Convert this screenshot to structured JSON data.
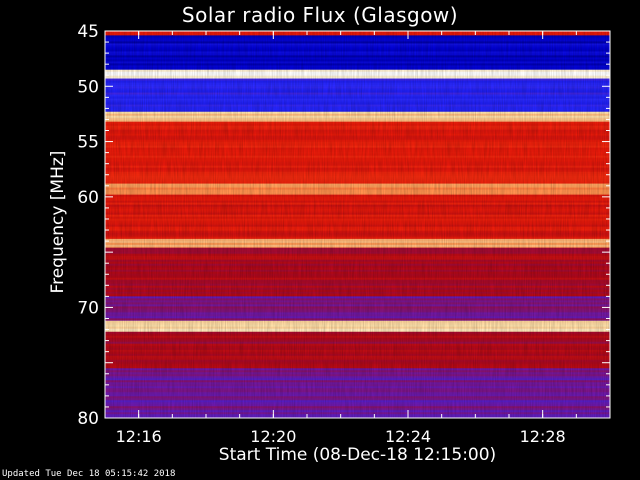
{
  "chart_data": {
    "type": "heatmap",
    "title": "Solar radio Flux (Glasgow)",
    "xlabel": "Start Time (08-Dec-18 12:15:00)",
    "ylabel": "Frequency [MHz]",
    "x_range": [
      "12:15:00",
      "12:30:00"
    ],
    "x_ticks": [
      "12:16",
      "12:20",
      "12:24",
      "12:28"
    ],
    "x_tick_minutes": [
      1,
      5,
      9,
      13
    ],
    "y_range": [
      45,
      80
    ],
    "y_inverted": true,
    "y_ticks": [
      45,
      50,
      55,
      60,
      65,
      70,
      75,
      80
    ],
    "y_tick_labels": [
      "45",
      "50",
      "55",
      "60",
      "",
      "70",
      "",
      "80"
    ],
    "colormap": [
      "#000033",
      "#0000d0",
      "#2a2aff",
      "#6a1ab0",
      "#b00818",
      "#e81a0a",
      "#ff4418",
      "#ff9a55",
      "#ffe6b0",
      "#ffffff"
    ],
    "bands": [
      {
        "from": 45.0,
        "to": 45.4,
        "level": 0.55
      },
      {
        "from": 45.4,
        "to": 48.5,
        "level": 0.12
      },
      {
        "from": 48.5,
        "to": 49.3,
        "level": 0.97
      },
      {
        "from": 49.3,
        "to": 52.3,
        "level": 0.22
      },
      {
        "from": 52.3,
        "to": 53.2,
        "level": 0.85
      },
      {
        "from": 53.2,
        "to": 58.8,
        "level": 0.56
      },
      {
        "from": 58.8,
        "to": 59.8,
        "level": 0.78
      },
      {
        "from": 59.8,
        "to": 63.8,
        "level": 0.54
      },
      {
        "from": 63.8,
        "to": 64.6,
        "level": 0.8
      },
      {
        "from": 64.6,
        "to": 69.0,
        "level": 0.46
      },
      {
        "from": 69.0,
        "to": 71.2,
        "level": 0.36
      },
      {
        "from": 71.2,
        "to": 72.2,
        "level": 0.9
      },
      {
        "from": 72.2,
        "to": 75.5,
        "level": 0.44
      },
      {
        "from": 75.5,
        "to": 80.0,
        "level": 0.34
      }
    ],
    "grid": false
  },
  "footer_text": "Updated Tue Dec 18 05:15:42 2018"
}
